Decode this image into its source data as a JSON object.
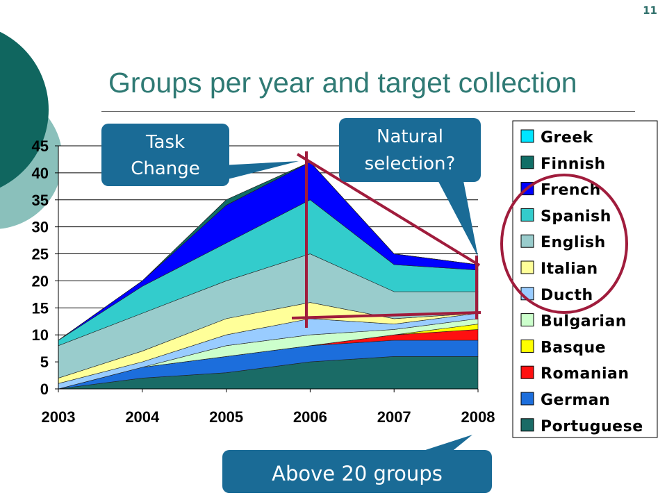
{
  "slide": {
    "page_number": "11",
    "title": "Groups per year and target collection",
    "colors": {
      "theme_dark": "#10665f",
      "theme_light": "#8ac0bb",
      "callout": "#1a6b96",
      "annotation_red": "#a01c3c"
    }
  },
  "callouts": {
    "task_change": "Task Change",
    "natural_selection": "Natural selection?",
    "above_20": "Above 20 groups"
  },
  "chart_data": {
    "type": "area",
    "stacked": true,
    "title": "",
    "xlabel": "",
    "ylabel": "",
    "x": [
      "2003",
      "2004",
      "2005",
      "2006",
      "2007",
      "2008"
    ],
    "ylim": [
      0,
      45
    ],
    "yticks": [
      0,
      5,
      10,
      15,
      20,
      25,
      30,
      35,
      40,
      45
    ],
    "grid": true,
    "legend_position": "right",
    "series": [
      {
        "name": "Portuguese",
        "color": "#1a6b66",
        "values": [
          0,
          2,
          3,
          5,
          6,
          6
        ]
      },
      {
        "name": "German",
        "color": "#1c6edc",
        "values": [
          0,
          2,
          3,
          3,
          3,
          3
        ]
      },
      {
        "name": "Romanian",
        "color": "#ff1010",
        "values": [
          0,
          0,
          0,
          0,
          1,
          2
        ]
      },
      {
        "name": "Basque",
        "color": "#ffff00",
        "values": [
          0,
          0,
          0,
          0,
          0,
          1
        ]
      },
      {
        "name": "Bulgarian",
        "color": "#ccffcc",
        "values": [
          0,
          0,
          2,
          2,
          1,
          1
        ]
      },
      {
        "name": "Ducth",
        "color": "#99ccff",
        "values": [
          1,
          1,
          2,
          3,
          1,
          1
        ]
      },
      {
        "name": "Italian",
        "color": "#ffff99",
        "values": [
          1,
          2,
          3,
          3,
          1,
          0
        ]
      },
      {
        "name": "English",
        "color": "#99cccc",
        "values": [
          6,
          7,
          7,
          9,
          5,
          4
        ]
      },
      {
        "name": "Spanish",
        "color": "#33cccc",
        "values": [
          1,
          5,
          7,
          10,
          5,
          4
        ]
      },
      {
        "name": "French",
        "color": "#0000ff",
        "values": [
          0,
          1,
          7,
          7,
          2,
          1
        ]
      },
      {
        "name": "Finnish",
        "color": "#116e66",
        "values": [
          0,
          0,
          1,
          0,
          0,
          0
        ]
      },
      {
        "name": "Greek",
        "color": "#00e5ff",
        "values": [
          0,
          0,
          0,
          0,
          0,
          0
        ]
      }
    ],
    "legend_order": [
      "Greek",
      "Finnish",
      "French",
      "Spanish",
      "English",
      "Italian",
      "Ducth",
      "Bulgarian",
      "Basque",
      "Romanian",
      "German",
      "Portuguese"
    ]
  }
}
